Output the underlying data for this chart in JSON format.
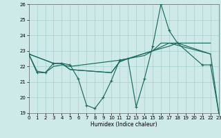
{
  "xlabel": "Humidex (Indice chaleur)",
  "xlim": [
    0,
    23
  ],
  "ylim": [
    19,
    26
  ],
  "yticks": [
    19,
    20,
    21,
    22,
    23,
    24,
    25,
    26
  ],
  "xticks": [
    0,
    1,
    2,
    3,
    4,
    5,
    6,
    7,
    8,
    9,
    10,
    11,
    12,
    13,
    14,
    15,
    16,
    17,
    18,
    19,
    20,
    21,
    22,
    23
  ],
  "bg_color": "#cde9e8",
  "grid_color": "#a8d4d2",
  "line_color": "#1a6b5e",
  "series0_x": [
    0,
    1,
    2,
    3,
    4,
    5,
    6,
    7,
    8,
    9,
    10,
    11,
    12,
    13,
    14,
    15,
    16,
    17,
    18,
    21,
    22,
    23
  ],
  "series0_y": [
    22.8,
    21.6,
    21.6,
    22.2,
    22.2,
    22.1,
    21.2,
    19.5,
    19.3,
    20.0,
    21.1,
    22.4,
    22.5,
    19.4,
    21.2,
    23.3,
    26.0,
    24.3,
    23.5,
    22.1,
    22.1,
    19.0
  ],
  "series1_x": [
    0,
    1,
    2,
    3,
    4,
    5,
    11,
    12,
    15,
    16,
    17,
    18,
    22,
    23
  ],
  "series1_y": [
    22.8,
    21.7,
    21.6,
    22.0,
    22.1,
    22.0,
    22.4,
    22.5,
    23.0,
    23.5,
    23.5,
    23.5,
    22.8,
    19.0
  ],
  "series2_x": [
    0,
    3,
    4,
    5,
    10,
    11,
    12,
    14,
    15,
    17,
    18,
    22
  ],
  "series2_y": [
    22.8,
    22.2,
    22.2,
    21.8,
    21.6,
    22.3,
    22.5,
    22.7,
    23.0,
    23.3,
    23.5,
    23.5
  ],
  "series3_x": [
    0,
    3,
    4,
    5,
    10,
    11,
    12,
    15,
    17,
    22
  ],
  "series3_y": [
    22.8,
    22.2,
    22.2,
    21.8,
    21.6,
    22.3,
    22.5,
    23.0,
    23.5,
    22.8
  ]
}
